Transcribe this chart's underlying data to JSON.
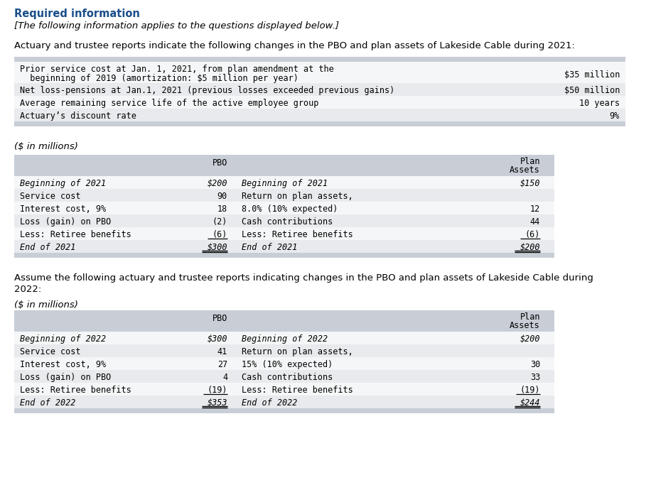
{
  "title_required": "Required information",
  "subtitle": "[The following information applies to the questions displayed below.]",
  "para1": "Actuary and trustee reports indicate the following changes in the PBO and plan assets of Lakeside Cable during 2021:",
  "info_rows": [
    [
      "Prior service cost at Jan. 1, 2021, from plan amendment at the\n  beginning of 2019 (amortization: $5 million per year)",
      "$35 million"
    ],
    [
      "Net loss-pensions at Jan.1, 2021 (previous losses exceeded previous gains)",
      "$50 million"
    ],
    [
      "Average remaining service life of the active employee group",
      "10 years"
    ],
    [
      "Actuary’s discount rate",
      "9%"
    ]
  ],
  "unit_label": "($ in millions)",
  "table1_rows": [
    [
      "Beginning of 2021",
      "$200",
      "Beginning of 2021",
      "$150"
    ],
    [
      "Service cost",
      "90",
      "Return on plan assets,",
      ""
    ],
    [
      "Interest cost, 9%",
      "18",
      "8.0% (10% expected)",
      "12"
    ],
    [
      "Loss (gain) on PBO",
      "(2)",
      "Cash contributions",
      "44"
    ],
    [
      "Less: Retiree benefits",
      "(6)",
      "Less: Retiree benefits",
      "(6)"
    ],
    [
      "End of 2021",
      "$300",
      "End of 2021",
      "$200"
    ]
  ],
  "para2_line1": "Assume the following actuary and trustee reports indicating changes in the PBO and plan assets of Lakeside Cable during",
  "para2_line2": "2022:",
  "unit_label2": "($ in millions)",
  "table2_rows": [
    [
      "Beginning of 2022",
      "$300",
      "Beginning of 2022",
      "$200"
    ],
    [
      "Service cost",
      "41",
      "Return on plan assets,",
      ""
    ],
    [
      "Interest cost, 9%",
      "27",
      "15% (10% expected)",
      "30"
    ],
    [
      "Loss (gain) on PBO",
      "4",
      "Cash contributions",
      "33"
    ],
    [
      "Less: Retiree benefits",
      "(19)",
      "Less: Retiree benefits",
      "(19)"
    ],
    [
      "End of 2022",
      "$353",
      "End of 2022",
      "$244"
    ]
  ],
  "bg_color": "#ffffff",
  "header_bg": "#c8cdd6",
  "row_alt": "#e8eaed",
  "row_white": "#f5f6f7",
  "title_color": "#1a4f8a",
  "text_color": "#000000"
}
